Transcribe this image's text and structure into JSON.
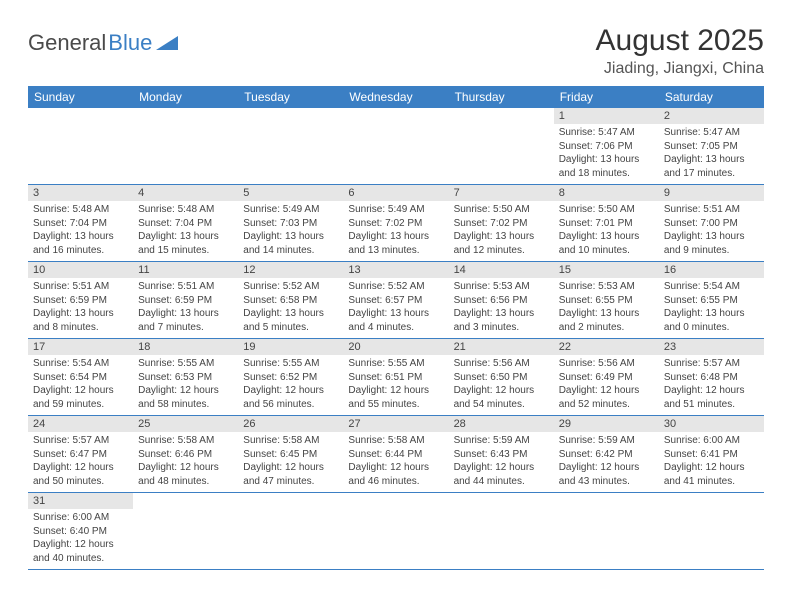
{
  "logo": {
    "part1": "General",
    "part2": "Blue"
  },
  "title": {
    "month": "August 2025",
    "location": "Jiading, Jiangxi, China"
  },
  "colors": {
    "header_bg": "#3b7fc4",
    "header_text": "#ffffff",
    "daynum_bg": "#e6e6e6",
    "row_border": "#3b7fc4",
    "body_text": "#444444"
  },
  "weekdays": [
    "Sunday",
    "Monday",
    "Tuesday",
    "Wednesday",
    "Thursday",
    "Friday",
    "Saturday"
  ],
  "weeks": [
    [
      null,
      null,
      null,
      null,
      null,
      {
        "n": "1",
        "sr": "Sunrise: 5:47 AM",
        "ss": "Sunset: 7:06 PM",
        "dl": "Daylight: 13 hours and 18 minutes."
      },
      {
        "n": "2",
        "sr": "Sunrise: 5:47 AM",
        "ss": "Sunset: 7:05 PM",
        "dl": "Daylight: 13 hours and 17 minutes."
      }
    ],
    [
      {
        "n": "3",
        "sr": "Sunrise: 5:48 AM",
        "ss": "Sunset: 7:04 PM",
        "dl": "Daylight: 13 hours and 16 minutes."
      },
      {
        "n": "4",
        "sr": "Sunrise: 5:48 AM",
        "ss": "Sunset: 7:04 PM",
        "dl": "Daylight: 13 hours and 15 minutes."
      },
      {
        "n": "5",
        "sr": "Sunrise: 5:49 AM",
        "ss": "Sunset: 7:03 PM",
        "dl": "Daylight: 13 hours and 14 minutes."
      },
      {
        "n": "6",
        "sr": "Sunrise: 5:49 AM",
        "ss": "Sunset: 7:02 PM",
        "dl": "Daylight: 13 hours and 13 minutes."
      },
      {
        "n": "7",
        "sr": "Sunrise: 5:50 AM",
        "ss": "Sunset: 7:02 PM",
        "dl": "Daylight: 13 hours and 12 minutes."
      },
      {
        "n": "8",
        "sr": "Sunrise: 5:50 AM",
        "ss": "Sunset: 7:01 PM",
        "dl": "Daylight: 13 hours and 10 minutes."
      },
      {
        "n": "9",
        "sr": "Sunrise: 5:51 AM",
        "ss": "Sunset: 7:00 PM",
        "dl": "Daylight: 13 hours and 9 minutes."
      }
    ],
    [
      {
        "n": "10",
        "sr": "Sunrise: 5:51 AM",
        "ss": "Sunset: 6:59 PM",
        "dl": "Daylight: 13 hours and 8 minutes."
      },
      {
        "n": "11",
        "sr": "Sunrise: 5:51 AM",
        "ss": "Sunset: 6:59 PM",
        "dl": "Daylight: 13 hours and 7 minutes."
      },
      {
        "n": "12",
        "sr": "Sunrise: 5:52 AM",
        "ss": "Sunset: 6:58 PM",
        "dl": "Daylight: 13 hours and 5 minutes."
      },
      {
        "n": "13",
        "sr": "Sunrise: 5:52 AM",
        "ss": "Sunset: 6:57 PM",
        "dl": "Daylight: 13 hours and 4 minutes."
      },
      {
        "n": "14",
        "sr": "Sunrise: 5:53 AM",
        "ss": "Sunset: 6:56 PM",
        "dl": "Daylight: 13 hours and 3 minutes."
      },
      {
        "n": "15",
        "sr": "Sunrise: 5:53 AM",
        "ss": "Sunset: 6:55 PM",
        "dl": "Daylight: 13 hours and 2 minutes."
      },
      {
        "n": "16",
        "sr": "Sunrise: 5:54 AM",
        "ss": "Sunset: 6:55 PM",
        "dl": "Daylight: 13 hours and 0 minutes."
      }
    ],
    [
      {
        "n": "17",
        "sr": "Sunrise: 5:54 AM",
        "ss": "Sunset: 6:54 PM",
        "dl": "Daylight: 12 hours and 59 minutes."
      },
      {
        "n": "18",
        "sr": "Sunrise: 5:55 AM",
        "ss": "Sunset: 6:53 PM",
        "dl": "Daylight: 12 hours and 58 minutes."
      },
      {
        "n": "19",
        "sr": "Sunrise: 5:55 AM",
        "ss": "Sunset: 6:52 PM",
        "dl": "Daylight: 12 hours and 56 minutes."
      },
      {
        "n": "20",
        "sr": "Sunrise: 5:55 AM",
        "ss": "Sunset: 6:51 PM",
        "dl": "Daylight: 12 hours and 55 minutes."
      },
      {
        "n": "21",
        "sr": "Sunrise: 5:56 AM",
        "ss": "Sunset: 6:50 PM",
        "dl": "Daylight: 12 hours and 54 minutes."
      },
      {
        "n": "22",
        "sr": "Sunrise: 5:56 AM",
        "ss": "Sunset: 6:49 PM",
        "dl": "Daylight: 12 hours and 52 minutes."
      },
      {
        "n": "23",
        "sr": "Sunrise: 5:57 AM",
        "ss": "Sunset: 6:48 PM",
        "dl": "Daylight: 12 hours and 51 minutes."
      }
    ],
    [
      {
        "n": "24",
        "sr": "Sunrise: 5:57 AM",
        "ss": "Sunset: 6:47 PM",
        "dl": "Daylight: 12 hours and 50 minutes."
      },
      {
        "n": "25",
        "sr": "Sunrise: 5:58 AM",
        "ss": "Sunset: 6:46 PM",
        "dl": "Daylight: 12 hours and 48 minutes."
      },
      {
        "n": "26",
        "sr": "Sunrise: 5:58 AM",
        "ss": "Sunset: 6:45 PM",
        "dl": "Daylight: 12 hours and 47 minutes."
      },
      {
        "n": "27",
        "sr": "Sunrise: 5:58 AM",
        "ss": "Sunset: 6:44 PM",
        "dl": "Daylight: 12 hours and 46 minutes."
      },
      {
        "n": "28",
        "sr": "Sunrise: 5:59 AM",
        "ss": "Sunset: 6:43 PM",
        "dl": "Daylight: 12 hours and 44 minutes."
      },
      {
        "n": "29",
        "sr": "Sunrise: 5:59 AM",
        "ss": "Sunset: 6:42 PM",
        "dl": "Daylight: 12 hours and 43 minutes."
      },
      {
        "n": "30",
        "sr": "Sunrise: 6:00 AM",
        "ss": "Sunset: 6:41 PM",
        "dl": "Daylight: 12 hours and 41 minutes."
      }
    ],
    [
      {
        "n": "31",
        "sr": "Sunrise: 6:00 AM",
        "ss": "Sunset: 6:40 PM",
        "dl": "Daylight: 12 hours and 40 minutes."
      },
      null,
      null,
      null,
      null,
      null,
      null
    ]
  ]
}
